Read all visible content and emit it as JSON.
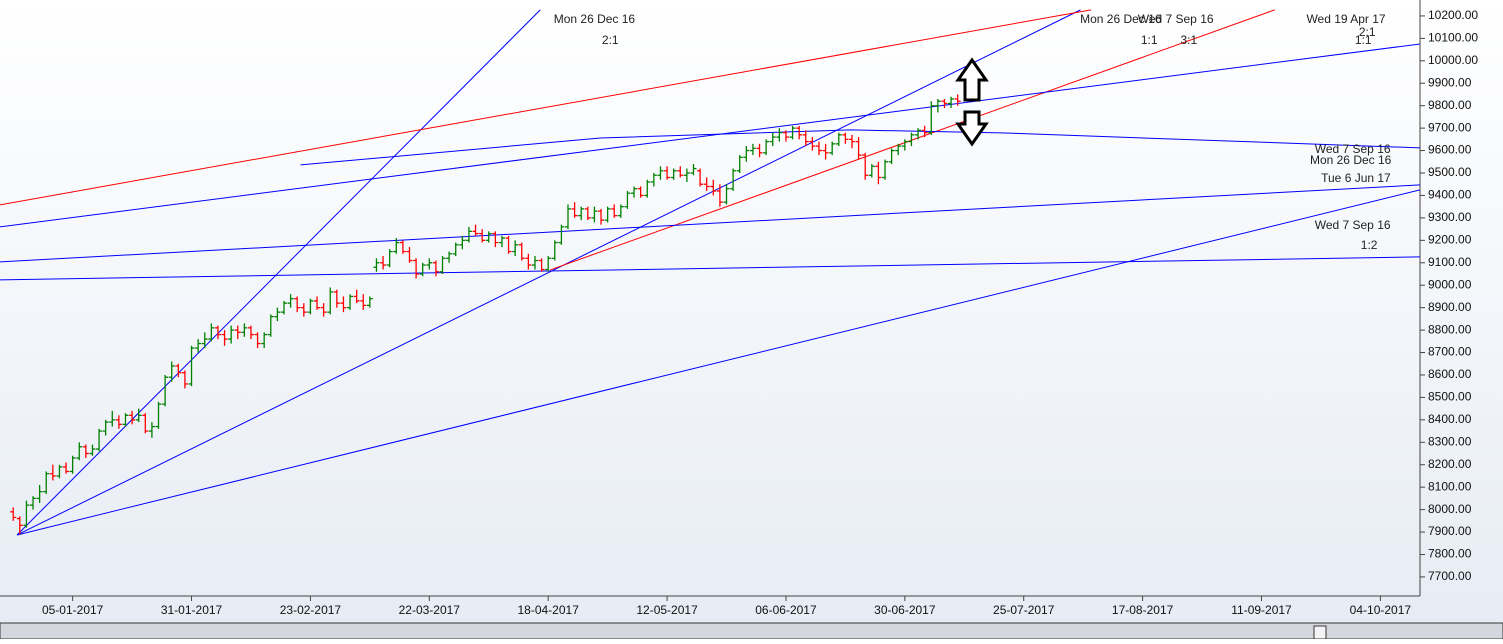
{
  "chart_data": {
    "type": "ohlc",
    "up_color": "#008000",
    "down_color": "#ff0000",
    "xlim": [
      -2,
      213
    ],
    "ylim": [
      7615,
      10271
    ],
    "xticks": [
      {
        "value": 9,
        "label": "05-01-2017"
      },
      {
        "value": 27,
        "label": "31-01-2017"
      },
      {
        "value": 45,
        "label": "23-02-2017"
      },
      {
        "value": 63,
        "label": "22-03-2017"
      },
      {
        "value": 81,
        "label": "18-04-2017"
      },
      {
        "value": 99,
        "label": "12-05-2017"
      },
      {
        "value": 117,
        "label": "06-06-2017"
      },
      {
        "value": 135,
        "label": "30-06-2017"
      },
      {
        "value": 153,
        "label": "25-07-2017"
      },
      {
        "value": 171,
        "label": "17-08-2017"
      },
      {
        "value": 189,
        "label": "11-09-2017"
      },
      {
        "value": 207,
        "label": "04-10-2017"
      }
    ],
    "yticks": [
      {
        "value": 10200,
        "label": "10200.00"
      },
      {
        "value": 10100,
        "label": "10100.00"
      },
      {
        "value": 10000,
        "label": "10000.00"
      },
      {
        "value": 9900,
        "label": "9900.00"
      },
      {
        "value": 9800,
        "label": "9800.00"
      },
      {
        "value": 9700,
        "label": "9700.00"
      },
      {
        "value": 9600,
        "label": "9600.00"
      },
      {
        "value": 9500,
        "label": "9500.00"
      },
      {
        "value": 9400,
        "label": "9400.00"
      },
      {
        "value": 9300,
        "label": "9300.00"
      },
      {
        "value": 9200,
        "label": "9200.00"
      },
      {
        "value": 9100,
        "label": "9100.00"
      },
      {
        "value": 9000,
        "label": "9000.00"
      },
      {
        "value": 8900,
        "label": "8900.00"
      },
      {
        "value": 8800,
        "label": "8800.00"
      },
      {
        "value": 8700,
        "label": "8700.00"
      },
      {
        "value": 8600,
        "label": "8600.00"
      },
      {
        "value": 8500,
        "label": "8500.00"
      },
      {
        "value": 8400,
        "label": "8400.00"
      },
      {
        "value": 8300,
        "label": "8300.00"
      },
      {
        "value": 8200,
        "label": "8200.00"
      },
      {
        "value": 8100,
        "label": "8100.00"
      },
      {
        "value": 8000,
        "label": "8000.00"
      },
      {
        "value": 7900,
        "label": "7900.00"
      },
      {
        "value": 7800,
        "label": "7800.00"
      },
      {
        "value": 7700,
        "label": "7700.00"
      }
    ],
    "bars": [
      [
        7990,
        8010,
        7950,
        7965
      ],
      [
        7960,
        7970,
        7890,
        7930
      ],
      [
        7930,
        8040,
        7920,
        8020
      ],
      [
        8020,
        8060,
        8000,
        8050
      ],
      [
        8050,
        8110,
        8030,
        8080
      ],
      [
        8080,
        8170,
        8070,
        8160
      ],
      [
        8160,
        8200,
        8130,
        8150
      ],
      [
        8150,
        8200,
        8140,
        8190
      ],
      [
        8190,
        8210,
        8160,
        8170
      ],
      [
        8170,
        8240,
        8160,
        8230
      ],
      [
        8230,
        8300,
        8220,
        8280
      ],
      [
        8280,
        8290,
        8230,
        8250
      ],
      [
        8250,
        8290,
        8240,
        8270
      ],
      [
        8270,
        8360,
        8260,
        8350
      ],
      [
        8350,
        8400,
        8330,
        8390
      ],
      [
        8390,
        8440,
        8370,
        8400
      ],
      [
        8400,
        8420,
        8360,
        8380
      ],
      [
        8380,
        8430,
        8370,
        8420
      ],
      [
        8420,
        8440,
        8380,
        8400
      ],
      [
        8400,
        8450,
        8390,
        8420
      ],
      [
        8420,
        8430,
        8340,
        8350
      ],
      [
        8350,
        8390,
        8320,
        8370
      ],
      [
        8370,
        8480,
        8360,
        8470
      ],
      [
        8470,
        8600,
        8460,
        8590
      ],
      [
        8590,
        8660,
        8570,
        8640
      ],
      [
        8640,
        8650,
        8590,
        8610
      ],
      [
        8610,
        8620,
        8540,
        8560
      ],
      [
        8560,
        8730,
        8550,
        8720
      ],
      [
        8720,
        8760,
        8700,
        8740
      ],
      [
        8740,
        8790,
        8720,
        8760
      ],
      [
        8760,
        8830,
        8750,
        8810
      ],
      [
        8810,
        8820,
        8760,
        8780
      ],
      [
        8780,
        8800,
        8730,
        8760
      ],
      [
        8760,
        8820,
        8740,
        8800
      ],
      [
        8800,
        8820,
        8760,
        8790
      ],
      [
        8790,
        8830,
        8770,
        8810
      ],
      [
        8810,
        8820,
        8760,
        8780
      ],
      [
        8780,
        8790,
        8720,
        8740
      ],
      [
        8740,
        8790,
        8720,
        8780
      ],
      [
        8780,
        8870,
        8770,
        8860
      ],
      [
        8860,
        8900,
        8840,
        8880
      ],
      [
        8880,
        8930,
        8870,
        8920
      ],
      [
        8920,
        8960,
        8900,
        8940
      ],
      [
        8940,
        8950,
        8880,
        8900
      ],
      [
        8900,
        8920,
        8860,
        8880
      ],
      [
        8880,
        8940,
        8870,
        8930
      ],
      [
        8930,
        8950,
        8890,
        8900
      ],
      [
        8900,
        8920,
        8860,
        8880
      ],
      [
        8880,
        8990,
        8870,
        8970
      ],
      [
        8970,
        8980,
        8900,
        8920
      ],
      [
        8920,
        8950,
        8880,
        8900
      ],
      [
        8900,
        8960,
        8890,
        8950
      ],
      [
        8950,
        8980,
        8920,
        8930
      ],
      [
        8930,
        8960,
        8890,
        8910
      ],
      [
        8910,
        8950,
        8900,
        8940
      ],
      [
        9080,
        9120,
        9060,
        9100
      ],
      [
        9100,
        9130,
        9070,
        9090
      ],
      [
        9090,
        9160,
        9080,
        9150
      ],
      [
        9150,
        9210,
        9140,
        9190
      ],
      [
        9190,
        9200,
        9140,
        9150
      ],
      [
        9150,
        9170,
        9100,
        9110
      ],
      [
        9110,
        9120,
        9030,
        9050
      ],
      [
        9050,
        9100,
        9040,
        9090
      ],
      [
        9090,
        9120,
        9070,
        9100
      ],
      [
        9100,
        9110,
        9040,
        9060
      ],
      [
        9060,
        9130,
        9050,
        9120
      ],
      [
        9120,
        9150,
        9100,
        9140
      ],
      [
        9140,
        9190,
        9130,
        9180
      ],
      [
        9180,
        9220,
        9160,
        9200
      ],
      [
        9200,
        9260,
        9190,
        9240
      ],
      [
        9240,
        9270,
        9220,
        9230
      ],
      [
        9230,
        9250,
        9190,
        9200
      ],
      [
        9200,
        9240,
        9190,
        9230
      ],
      [
        9230,
        9240,
        9170,
        9190
      ],
      [
        9190,
        9220,
        9170,
        9210
      ],
      [
        9210,
        9220,
        9140,
        9150
      ],
      [
        9150,
        9200,
        9130,
        9180
      ],
      [
        9180,
        9190,
        9110,
        9120
      ],
      [
        9120,
        9140,
        9070,
        9090
      ],
      [
        9090,
        9130,
        9070,
        9110
      ],
      [
        9110,
        9120,
        9060,
        9070
      ],
      [
        9070,
        9130,
        9060,
        9120
      ],
      [
        9120,
        9200,
        9110,
        9190
      ],
      [
        9190,
        9270,
        9180,
        9260
      ],
      [
        9260,
        9360,
        9250,
        9340
      ],
      [
        9340,
        9370,
        9300,
        9310
      ],
      [
        9310,
        9350,
        9290,
        9340
      ],
      [
        9340,
        9350,
        9290,
        9300
      ],
      [
        9300,
        9350,
        9280,
        9330
      ],
      [
        9330,
        9340,
        9270,
        9290
      ],
      [
        9290,
        9350,
        9280,
        9340
      ],
      [
        9340,
        9360,
        9300,
        9310
      ],
      [
        9310,
        9360,
        9300,
        9350
      ],
      [
        9350,
        9420,
        9340,
        9410
      ],
      [
        9410,
        9440,
        9390,
        9430
      ],
      [
        9430,
        9440,
        9390,
        9400
      ],
      [
        9400,
        9470,
        9390,
        9460
      ],
      [
        9460,
        9500,
        9440,
        9490
      ],
      [
        9490,
        9530,
        9470,
        9510
      ],
      [
        9510,
        9530,
        9470,
        9480
      ],
      [
        9480,
        9520,
        9470,
        9510
      ],
      [
        9510,
        9530,
        9480,
        9490
      ],
      [
        9490,
        9520,
        9460,
        9500
      ],
      [
        9500,
        9540,
        9490,
        9520
      ],
      [
        9510,
        9520,
        9440,
        9450
      ],
      [
        9450,
        9480,
        9420,
        9440
      ],
      [
        9440,
        9470,
        9400,
        9420
      ],
      [
        9420,
        9450,
        9350,
        9370
      ],
      [
        9370,
        9450,
        9360,
        9430
      ],
      [
        9430,
        9520,
        9420,
        9510
      ],
      [
        9510,
        9580,
        9500,
        9570
      ],
      [
        9570,
        9620,
        9550,
        9600
      ],
      [
        9600,
        9630,
        9580,
        9610
      ],
      [
        9610,
        9630,
        9570,
        9590
      ],
      [
        9590,
        9650,
        9580,
        9640
      ],
      [
        9640,
        9680,
        9620,
        9660
      ],
      [
        9660,
        9700,
        9640,
        9680
      ],
      [
        9680,
        9690,
        9640,
        9660
      ],
      [
        9660,
        9710,
        9650,
        9700
      ],
      [
        9700,
        9710,
        9650,
        9670
      ],
      [
        9670,
        9690,
        9620,
        9640
      ],
      [
        9640,
        9660,
        9600,
        9620
      ],
      [
        9620,
        9640,
        9580,
        9600
      ],
      [
        9600,
        9630,
        9560,
        9590
      ],
      [
        9590,
        9640,
        9580,
        9630
      ],
      [
        9630,
        9680,
        9620,
        9670
      ],
      [
        9670,
        9680,
        9630,
        9650
      ],
      [
        9650,
        9670,
        9610,
        9640
      ],
      [
        9640,
        9660,
        9560,
        9580
      ],
      [
        9580,
        9590,
        9470,
        9490
      ],
      [
        9490,
        9540,
        9480,
        9530
      ],
      [
        9530,
        9550,
        9450,
        9480
      ],
      [
        9480,
        9560,
        9470,
        9550
      ],
      [
        9550,
        9610,
        9540,
        9600
      ],
      [
        9600,
        9630,
        9580,
        9620
      ],
      [
        9620,
        9650,
        9600,
        9640
      ],
      [
        9640,
        9680,
        9620,
        9670
      ],
      [
        9670,
        9700,
        9650,
        9690
      ],
      [
        9690,
        9710,
        9660,
        9680
      ],
      [
        9680,
        9820,
        9670,
        9800
      ],
      [
        9800,
        9830,
        9770,
        9820
      ],
      [
        9820,
        9830,
        9790,
        9810
      ],
      [
        9810,
        9840,
        9790,
        9830
      ],
      [
        9830,
        9850,
        9800,
        9820
      ]
    ],
    "lines": [
      {
        "color": "#0000ff",
        "x": [
          0.58,
          79.8
        ],
        "y": [
          7887,
          10227
        ]
      },
      {
        "color": "#0000ff",
        "x": [
          0.58,
          161.6
        ],
        "y": [
          7887,
          10227
        ]
      },
      {
        "color": "#0000ff",
        "x": [
          0.58,
          213
        ],
        "y": [
          7887,
          9425
        ]
      },
      {
        "color": "#ff0000",
        "x": [
          -2,
          163.2
        ],
        "y": [
          9358,
          10227
        ]
      },
      {
        "color": "#ff0000",
        "x": [
          81.3,
          191
        ],
        "y": [
          9068,
          10227
        ]
      },
      {
        "color": "#0000ff",
        "x": [
          -2,
          213
        ],
        "y": [
          9260,
          10075
        ]
      },
      {
        "color": "#0000ff",
        "x": [
          -2,
          213
        ],
        "y": [
          9104,
          9447
        ]
      },
      {
        "color": "#0000ff",
        "x": [
          -2,
          213
        ],
        "y": [
          9024,
          9126
        ]
      },
      {
        "color": "#0000ff",
        "x": [
          43.5,
          88.9,
          126.8,
          149.5,
          213
        ],
        "y": [
          9536,
          9656,
          9692,
          9679,
          9612
        ]
      }
    ],
    "annotations": [
      {
        "text": "Mon 26 Dec 16",
        "x": 88,
        "y": 10182
      },
      {
        "text": "2:1",
        "x": 90.4,
        "y": 10089
      },
      {
        "text": "Mon 26 Dec 16",
        "x": 167.7,
        "y": 10182
      },
      {
        "text": "Wed 7 Sep 16",
        "x": 176,
        "y": 10182
      },
      {
        "text": "1:1",
        "x": 172,
        "y": 10089
      },
      {
        "text": "3:1",
        "x": 178,
        "y": 10089
      },
      {
        "text": "Wed 19 Apr 17",
        "x": 201.8,
        "y": 10182
      },
      {
        "text": "2:1",
        "x": 205,
        "y": 10124
      },
      {
        "text": "1:1",
        "x": 204.4,
        "y": 10089
      },
      {
        "text": "Wed 7 Sep 16",
        "x": 202.8,
        "y": 9603
      },
      {
        "text": "Mon 26 Dec 16",
        "x": 202.5,
        "y": 9554
      },
      {
        "text": "Tue 6 Jun 17",
        "x": 203.3,
        "y": 9474
      },
      {
        "text": "Wed 7 Sep 16",
        "x": 202.8,
        "y": 9264
      },
      {
        "text": "1:2",
        "x": 205.3,
        "y": 9175
      }
    ]
  }
}
